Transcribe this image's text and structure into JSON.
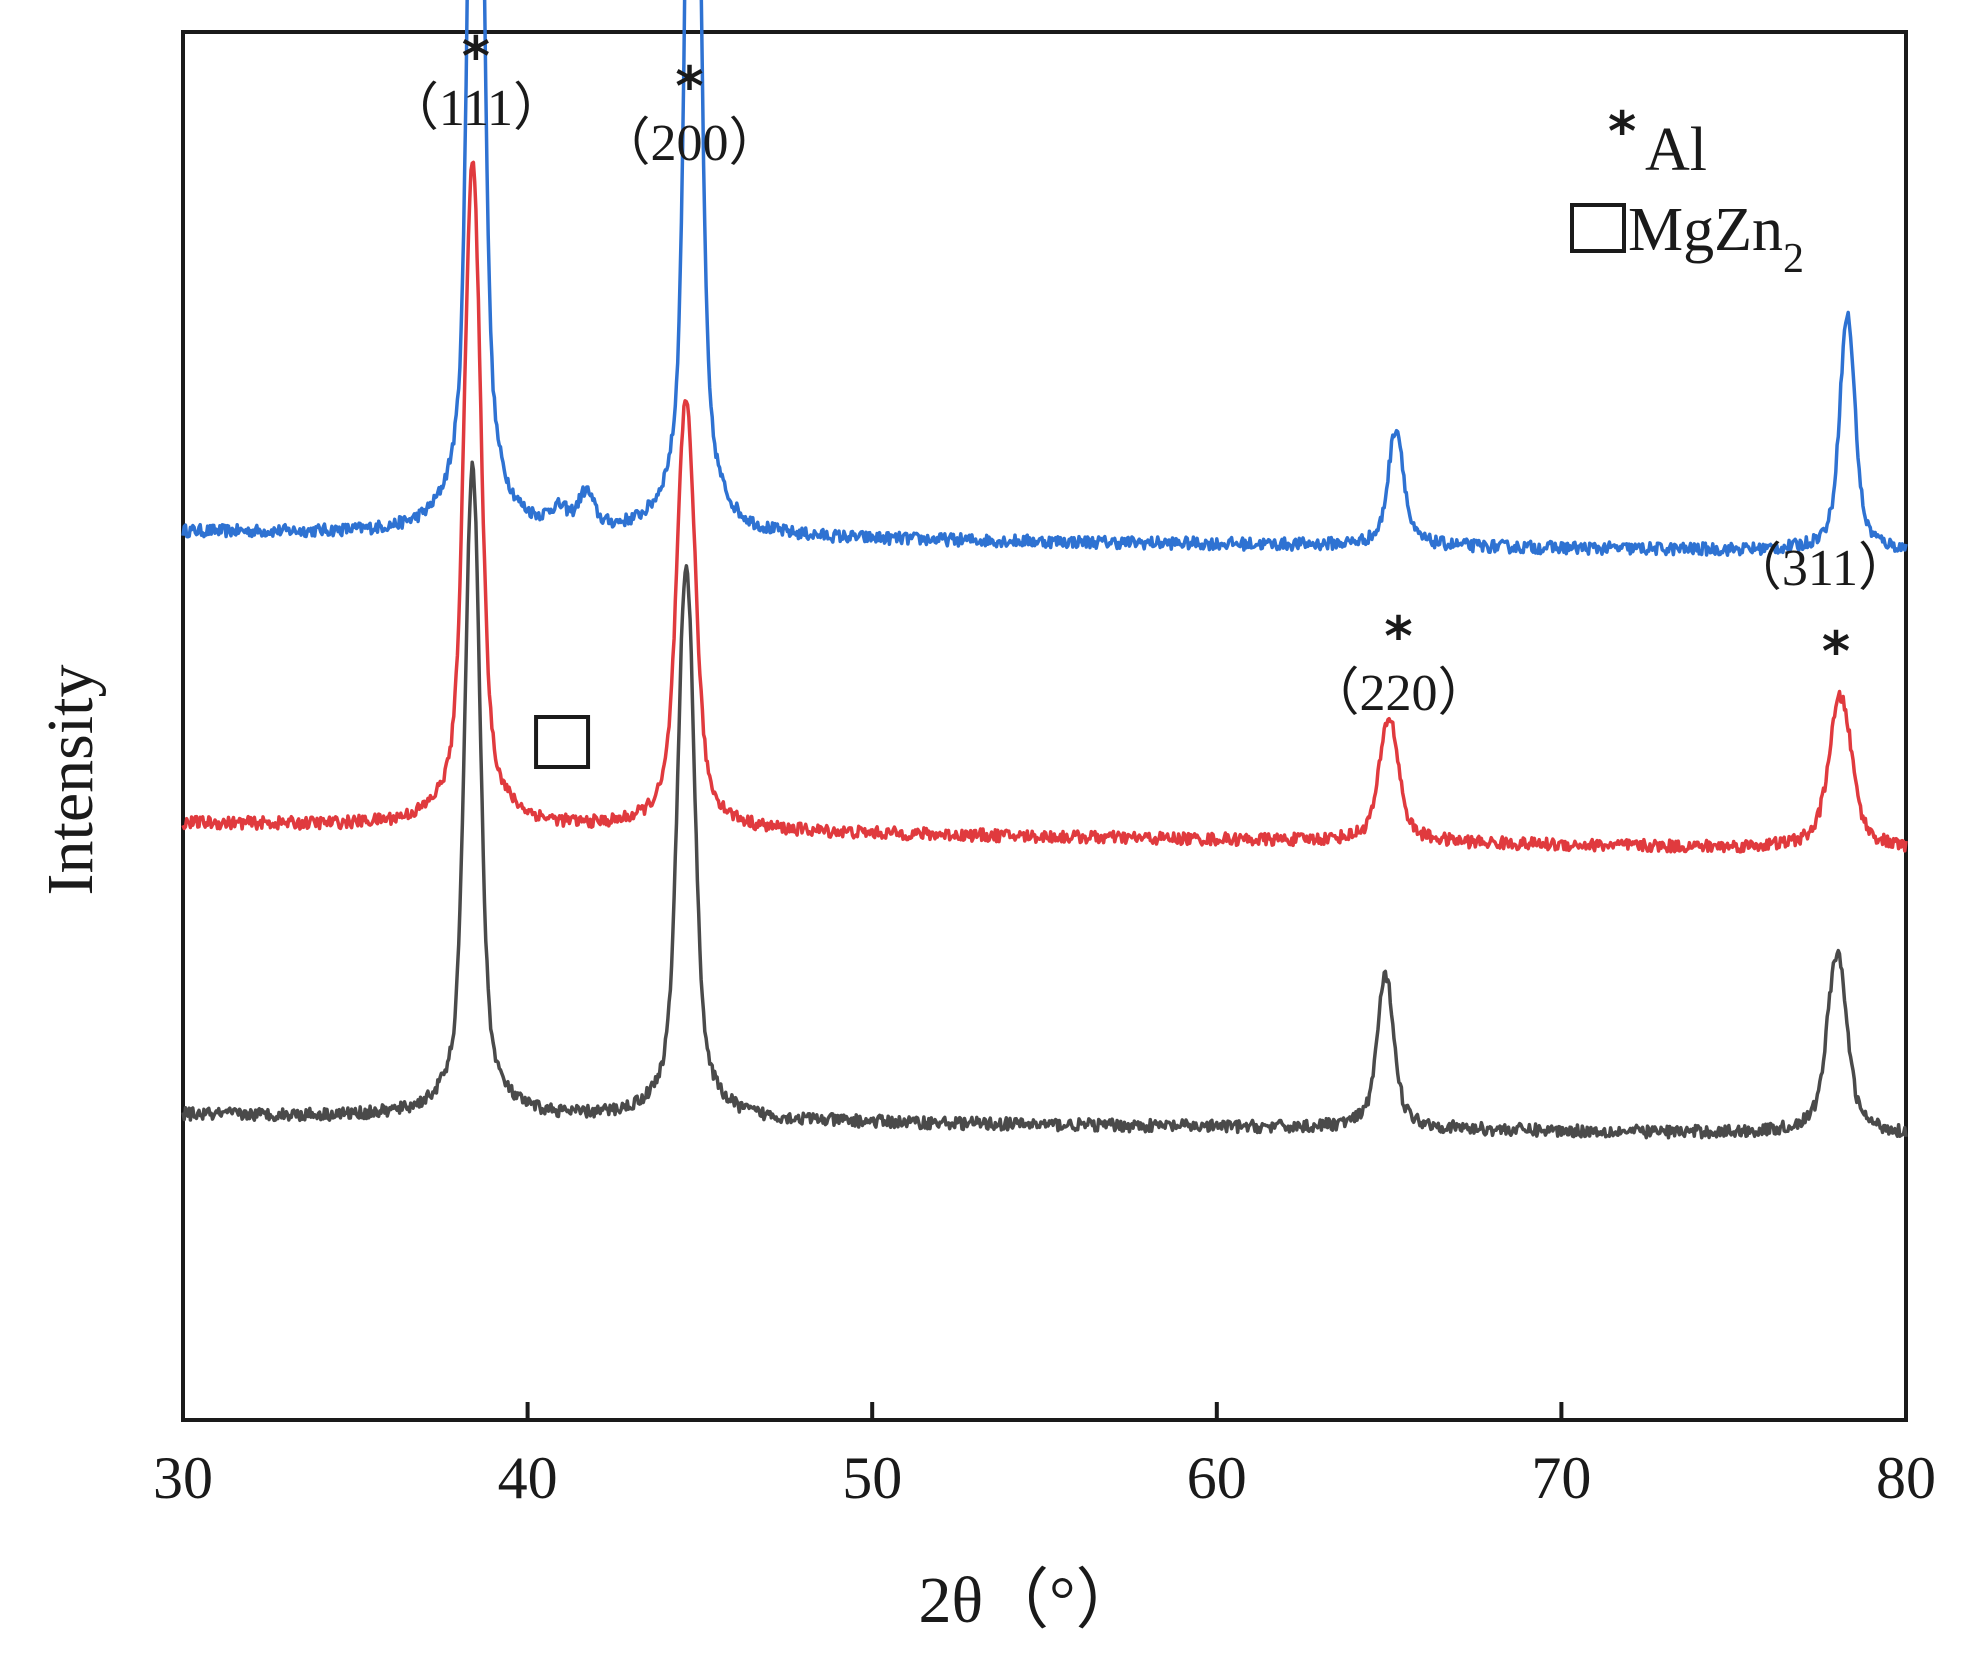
{
  "chart_data": {
    "type": "line",
    "xlabel": "2θ（°）",
    "ylabel": "Intensity",
    "xlim": [
      30,
      80
    ],
    "xticks": [
      "30",
      "40",
      "50",
      "60",
      "70",
      "80"
    ],
    "grid": false,
    "yaxis_ticks_shown": false,
    "legend": {
      "placement": "top-right",
      "entries": [
        {
          "symbol": "*",
          "label": "Al"
        },
        {
          "symbol": "□",
          "label": "MgZn",
          "subscript": "2"
        }
      ]
    },
    "peak_annotations": [
      {
        "x": 38.5,
        "marker": "*",
        "label": "（111）"
      },
      {
        "x": 44.7,
        "marker": "*",
        "label": "（200）"
      },
      {
        "x": 65.1,
        "marker": "*",
        "label": "（220）"
      },
      {
        "x": 78.2,
        "marker": "*",
        "label": "（311）"
      },
      {
        "x": 41.0,
        "marker": "□",
        "label": ""
      }
    ],
    "series": [
      {
        "color": "#2e72d2",
        "baseline": 0.64,
        "slope": -0.015,
        "peaks": [
          {
            "x": 38.5,
            "height": 0.82,
            "width": 0.18
          },
          {
            "x": 40.9,
            "height": 0.012,
            "width": 0.25
          },
          {
            "x": 41.7,
            "height": 0.025,
            "width": 0.2
          },
          {
            "x": 44.8,
            "height": 0.77,
            "width": 0.18
          },
          {
            "x": 65.2,
            "height": 0.085,
            "width": 0.2
          },
          {
            "x": 78.3,
            "height": 0.17,
            "width": 0.2
          }
        ]
      },
      {
        "color": "#e03a3e",
        "baseline": 0.43,
        "slope": -0.02,
        "peaks": [
          {
            "x": 38.4,
            "height": 0.48,
            "width": 0.22
          },
          {
            "x": 44.6,
            "height": 0.31,
            "width": 0.24
          },
          {
            "x": 65.0,
            "height": 0.09,
            "width": 0.25
          },
          {
            "x": 78.1,
            "height": 0.11,
            "width": 0.3
          }
        ]
      },
      {
        "color": "#4a4a4a",
        "baseline": 0.22,
        "slope": -0.015,
        "peaks": [
          {
            "x": 38.4,
            "height": 0.47,
            "width": 0.2
          },
          {
            "x": 44.6,
            "height": 0.4,
            "width": 0.22
          },
          {
            "x": 64.9,
            "height": 0.11,
            "width": 0.22
          },
          {
            "x": 78.0,
            "height": 0.13,
            "width": 0.26
          }
        ]
      }
    ]
  }
}
